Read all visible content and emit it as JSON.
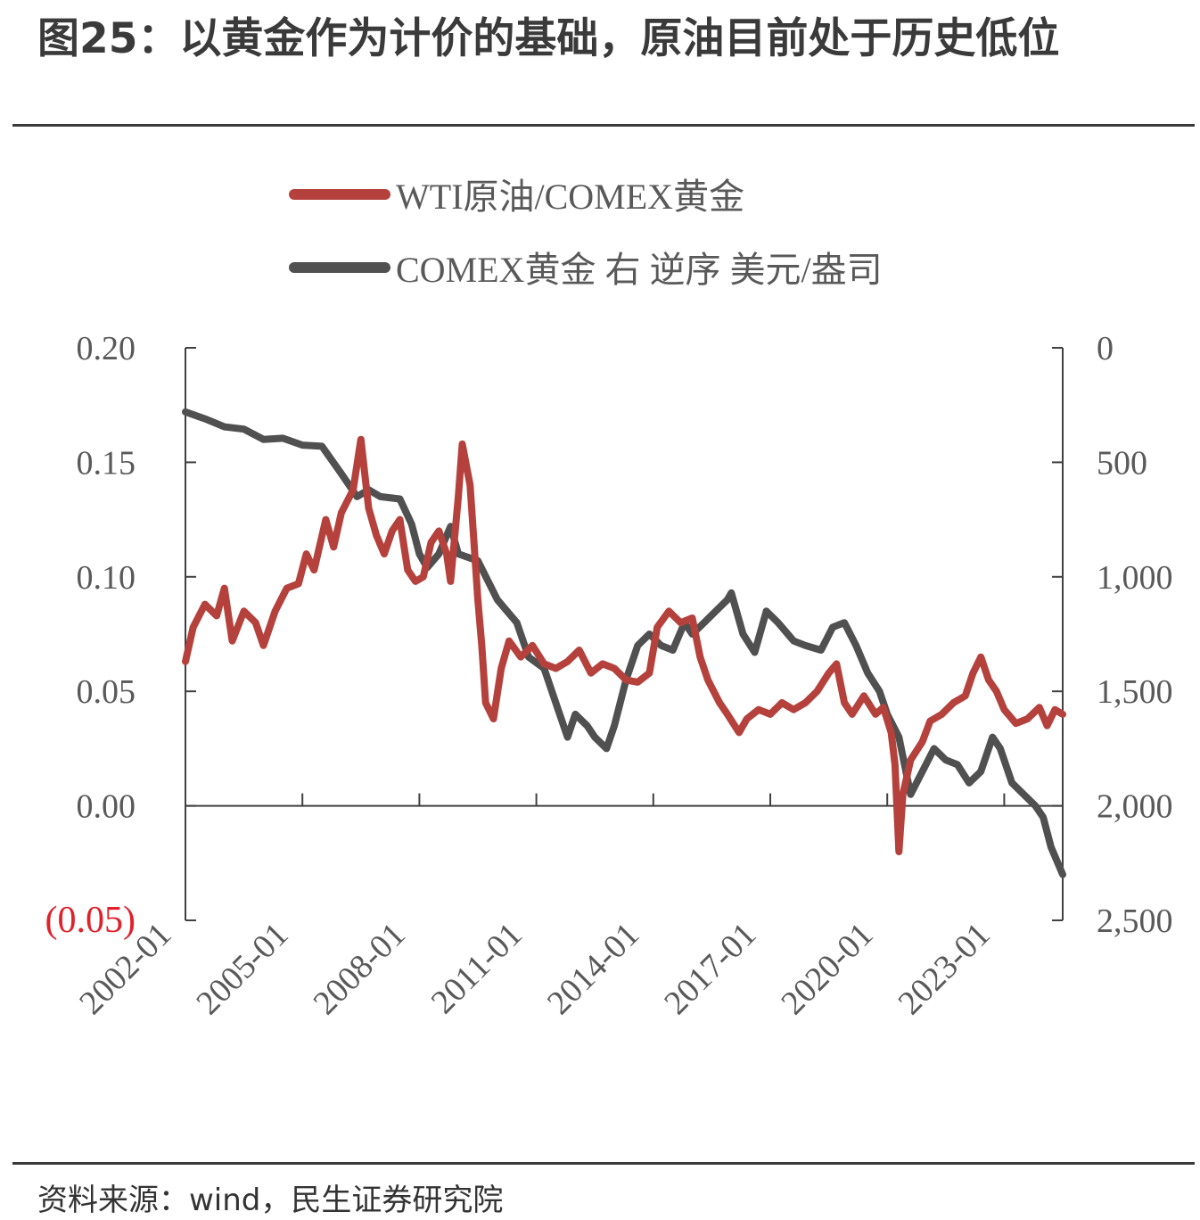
{
  "title": "图25：以黄金作为计价的基础，原油目前处于历史低位",
  "source": "资料来源：wind，民生证券研究院",
  "colors": {
    "oil_gold": "#b5413c",
    "gold": "#505050",
    "axis": "#404040",
    "negative": "#e2202a"
  },
  "chart_data": {
    "type": "line",
    "x_ticks": [
      "2002-01",
      "2005-01",
      "2008-01",
      "2011-01",
      "2014-01",
      "2017-01",
      "2020-01",
      "2023-01"
    ],
    "x_range": [
      2002.0,
      2024.5
    ],
    "y_left": {
      "ticks": [
        "0.20",
        "0.15",
        "0.10",
        "0.05",
        "0.00",
        "(0.05)"
      ],
      "values": [
        0.2,
        0.15,
        0.1,
        0.05,
        0.0,
        -0.05
      ],
      "range": [
        -0.05,
        0.2
      ]
    },
    "y_right": {
      "ticks": [
        "0",
        "500",
        "1,000",
        "1,500",
        "2,000",
        "2,500"
      ],
      "values": [
        0,
        500,
        1000,
        1500,
        2000,
        2500
      ],
      "range": [
        0,
        2500
      ],
      "inverted": true
    },
    "legend": [
      "WTI原油/COMEX黄金",
      "COMEX黄金 右 逆序 美元/盎司"
    ],
    "series": [
      {
        "name": "WTI原油/COMEX黄金",
        "axis": "left",
        "points": [
          [
            2002.0,
            0.063
          ],
          [
            2002.2,
            0.078
          ],
          [
            2002.5,
            0.088
          ],
          [
            2002.8,
            0.083
          ],
          [
            2003.0,
            0.095
          ],
          [
            2003.2,
            0.072
          ],
          [
            2003.5,
            0.085
          ],
          [
            2003.8,
            0.08
          ],
          [
            2004.0,
            0.07
          ],
          [
            2004.3,
            0.085
          ],
          [
            2004.6,
            0.095
          ],
          [
            2004.9,
            0.097
          ],
          [
            2005.1,
            0.11
          ],
          [
            2005.3,
            0.103
          ],
          [
            2005.6,
            0.125
          ],
          [
            2005.8,
            0.113
          ],
          [
            2006.0,
            0.128
          ],
          [
            2006.3,
            0.138
          ],
          [
            2006.5,
            0.16
          ],
          [
            2006.7,
            0.13
          ],
          [
            2006.9,
            0.118
          ],
          [
            2007.1,
            0.11
          ],
          [
            2007.3,
            0.12
          ],
          [
            2007.5,
            0.125
          ],
          [
            2007.7,
            0.103
          ],
          [
            2007.9,
            0.098
          ],
          [
            2008.1,
            0.1
          ],
          [
            2008.3,
            0.115
          ],
          [
            2008.5,
            0.12
          ],
          [
            2008.7,
            0.11
          ],
          [
            2008.8,
            0.098
          ],
          [
            2009.0,
            0.135
          ],
          [
            2009.1,
            0.158
          ],
          [
            2009.3,
            0.14
          ],
          [
            2009.5,
            0.09
          ],
          [
            2009.6,
            0.07
          ],
          [
            2009.7,
            0.045
          ],
          [
            2009.9,
            0.038
          ],
          [
            2010.1,
            0.06
          ],
          [
            2010.3,
            0.072
          ],
          [
            2010.6,
            0.065
          ],
          [
            2010.9,
            0.07
          ],
          [
            2011.2,
            0.062
          ],
          [
            2011.5,
            0.06
          ],
          [
            2011.8,
            0.063
          ],
          [
            2012.1,
            0.068
          ],
          [
            2012.4,
            0.058
          ],
          [
            2012.7,
            0.062
          ],
          [
            2013.0,
            0.06
          ],
          [
            2013.3,
            0.055
          ],
          [
            2013.6,
            0.054
          ],
          [
            2013.9,
            0.058
          ],
          [
            2014.1,
            0.078
          ],
          [
            2014.4,
            0.085
          ],
          [
            2014.7,
            0.08
          ],
          [
            2015.0,
            0.082
          ],
          [
            2015.2,
            0.065
          ],
          [
            2015.4,
            0.055
          ],
          [
            2015.7,
            0.045
          ],
          [
            2015.9,
            0.04
          ],
          [
            2016.2,
            0.032
          ],
          [
            2016.4,
            0.038
          ],
          [
            2016.7,
            0.042
          ],
          [
            2017.0,
            0.04
          ],
          [
            2017.3,
            0.045
          ],
          [
            2017.6,
            0.042
          ],
          [
            2017.9,
            0.045
          ],
          [
            2018.2,
            0.05
          ],
          [
            2018.5,
            0.058
          ],
          [
            2018.7,
            0.062
          ],
          [
            2018.9,
            0.045
          ],
          [
            2019.1,
            0.04
          ],
          [
            2019.4,
            0.048
          ],
          [
            2019.7,
            0.04
          ],
          [
            2019.9,
            0.043
          ],
          [
            2020.1,
            0.032
          ],
          [
            2020.2,
            0.018
          ],
          [
            2020.3,
            -0.02
          ],
          [
            2020.4,
            0.005
          ],
          [
            2020.6,
            0.02
          ],
          [
            2020.9,
            0.028
          ],
          [
            2021.1,
            0.037
          ],
          [
            2021.4,
            0.04
          ],
          [
            2021.7,
            0.045
          ],
          [
            2022.0,
            0.048
          ],
          [
            2022.2,
            0.058
          ],
          [
            2022.4,
            0.065
          ],
          [
            2022.6,
            0.055
          ],
          [
            2022.8,
            0.05
          ],
          [
            2023.0,
            0.042
          ],
          [
            2023.3,
            0.036
          ],
          [
            2023.6,
            0.038
          ],
          [
            2023.9,
            0.043
          ],
          [
            2024.1,
            0.035
          ],
          [
            2024.3,
            0.042
          ],
          [
            2024.5,
            0.04
          ]
        ]
      },
      {
        "name": "COMEX黄金 右 逆序 美元/盎司",
        "axis": "right",
        "points": [
          [
            2002.0,
            280
          ],
          [
            2002.5,
            310
          ],
          [
            2003.0,
            345
          ],
          [
            2003.5,
            355
          ],
          [
            2004.0,
            400
          ],
          [
            2004.5,
            395
          ],
          [
            2005.0,
            425
          ],
          [
            2005.5,
            430
          ],
          [
            2006.0,
            550
          ],
          [
            2006.4,
            650
          ],
          [
            2006.7,
            620
          ],
          [
            2007.0,
            650
          ],
          [
            2007.5,
            660
          ],
          [
            2007.8,
            770
          ],
          [
            2008.0,
            900
          ],
          [
            2008.2,
            960
          ],
          [
            2008.5,
            900
          ],
          [
            2008.8,
            780
          ],
          [
            2009.0,
            900
          ],
          [
            2009.5,
            930
          ],
          [
            2010.0,
            1100
          ],
          [
            2010.5,
            1200
          ],
          [
            2010.8,
            1350
          ],
          [
            2011.2,
            1400
          ],
          [
            2011.6,
            1600
          ],
          [
            2011.8,
            1700
          ],
          [
            2012.0,
            1600
          ],
          [
            2012.3,
            1650
          ],
          [
            2012.5,
            1700
          ],
          [
            2012.8,
            1750
          ],
          [
            2013.0,
            1650
          ],
          [
            2013.3,
            1450
          ],
          [
            2013.6,
            1300
          ],
          [
            2013.9,
            1250
          ],
          [
            2014.2,
            1300
          ],
          [
            2014.5,
            1320
          ],
          [
            2014.8,
            1200
          ],
          [
            2015.0,
            1250
          ],
          [
            2015.3,
            1200
          ],
          [
            2015.6,
            1150
          ],
          [
            2015.9,
            1100
          ],
          [
            2016.0,
            1070
          ],
          [
            2016.3,
            1250
          ],
          [
            2016.6,
            1330
          ],
          [
            2016.9,
            1150
          ],
          [
            2017.2,
            1200
          ],
          [
            2017.6,
            1280
          ],
          [
            2017.9,
            1300
          ],
          [
            2018.3,
            1320
          ],
          [
            2018.6,
            1220
          ],
          [
            2018.9,
            1200
          ],
          [
            2019.2,
            1300
          ],
          [
            2019.5,
            1420
          ],
          [
            2019.8,
            1500
          ],
          [
            2020.0,
            1600
          ],
          [
            2020.3,
            1700
          ],
          [
            2020.6,
            1950
          ],
          [
            2020.9,
            1850
          ],
          [
            2021.2,
            1750
          ],
          [
            2021.5,
            1800
          ],
          [
            2021.8,
            1820
          ],
          [
            2022.1,
            1900
          ],
          [
            2022.4,
            1850
          ],
          [
            2022.7,
            1700
          ],
          [
            2022.9,
            1750
          ],
          [
            2023.2,
            1900
          ],
          [
            2023.5,
            1950
          ],
          [
            2023.8,
            2000
          ],
          [
            2024.0,
            2050
          ],
          [
            2024.2,
            2180
          ],
          [
            2024.5,
            2300
          ]
        ]
      }
    ]
  }
}
